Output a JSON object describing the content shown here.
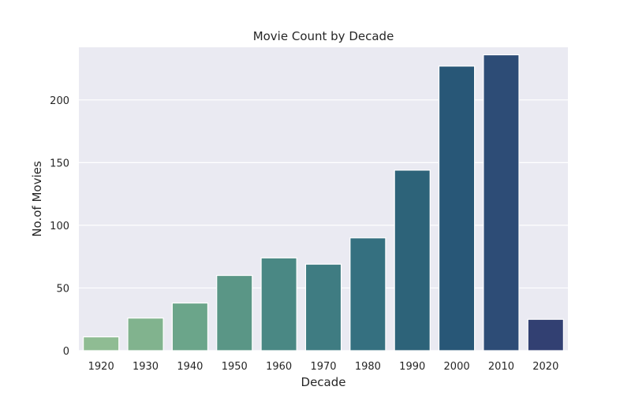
{
  "chart_data": {
    "type": "bar",
    "title": "Movie Count by Decade",
    "xlabel": "Decade",
    "ylabel": "No.of Movies",
    "categories": [
      "1920",
      "1930",
      "1940",
      "1950",
      "1960",
      "1970",
      "1980",
      "1990",
      "2000",
      "2010",
      "2020"
    ],
    "values": [
      11,
      26,
      38,
      60,
      74,
      69,
      90,
      144,
      227,
      236,
      25
    ],
    "bar_colors": [
      "#8fbc93",
      "#81b38e",
      "#6ba58a",
      "#5a9686",
      "#4a8884",
      "#3f7c82",
      "#357080",
      "#2d6379",
      "#285777",
      "#2d4c76",
      "#324072"
    ],
    "ylim": [
      0,
      242
    ],
    "yticks": [
      0,
      50,
      100,
      150,
      200
    ],
    "grid": true,
    "legend": "none",
    "style": {
      "plot_background": "#eaeaf2",
      "gridline_color": "#ffffff",
      "text_color": "#262626"
    }
  }
}
